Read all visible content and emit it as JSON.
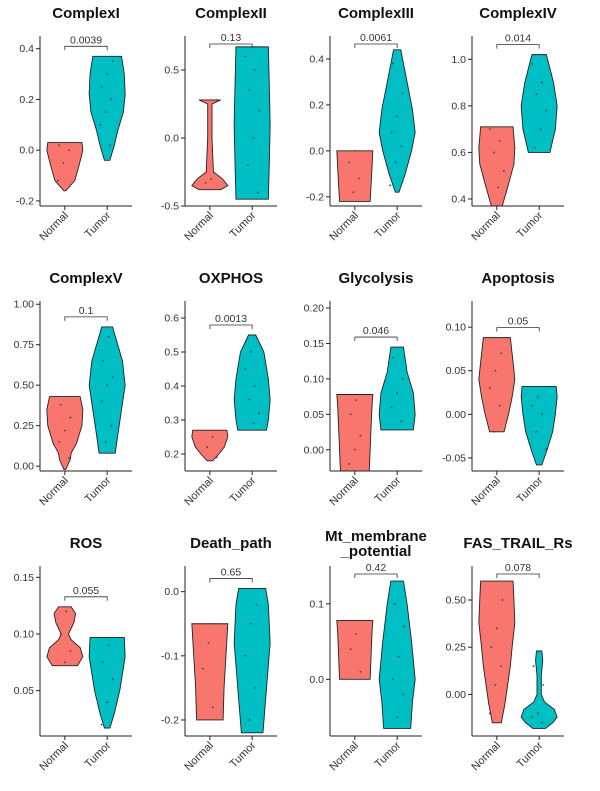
{
  "colors": {
    "normal": "#F8766D",
    "tumor": "#00BFC4"
  },
  "chart_data": [
    {
      "type": "violin",
      "title": "ComplexI",
      "categories": [
        "Normal",
        "Tumor"
      ],
      "ylim": [
        -0.22,
        0.45
      ],
      "yticks": [
        -0.2,
        0.0,
        0.2,
        0.4
      ],
      "ytick_labels": [
        "-0.2",
        "0.0",
        "0.2",
        "0.4"
      ],
      "pvalue": "0.0039",
      "groups": [
        {
          "name": "Normal",
          "profile": [
            [
              -0.16,
              0.05
            ],
            [
              -0.12,
              0.55
            ],
            [
              -0.07,
              0.75
            ],
            [
              -0.03,
              0.9
            ],
            [
              0.0,
              1.0
            ],
            [
              0.03,
              0.95
            ]
          ],
          "points": [
            -0.12,
            -0.05,
            0.0,
            0.02
          ]
        },
        {
          "name": "Tumor",
          "profile": [
            [
              -0.04,
              0.15
            ],
            [
              0.02,
              0.4
            ],
            [
              0.08,
              0.6
            ],
            [
              0.15,
              0.9
            ],
            [
              0.22,
              1.0
            ],
            [
              0.3,
              0.95
            ],
            [
              0.37,
              0.8
            ]
          ],
          "points": [
            0.02,
            0.1,
            0.15,
            0.2,
            0.25,
            0.3,
            0.35
          ]
        }
      ]
    },
    {
      "type": "violin",
      "title": "ComplexII",
      "categories": [
        "Normal",
        "Tumor"
      ],
      "ylim": [
        -0.5,
        0.75
      ],
      "yticks": [
        -0.5,
        0.0,
        0.5
      ],
      "ytick_labels": [
        "-0.5",
        "0.0",
        "0.5"
      ],
      "pvalue": "0.13",
      "groups": [
        {
          "name": "Normal",
          "profile": [
            [
              -0.38,
              0.6
            ],
            [
              -0.35,
              1.0
            ],
            [
              -0.3,
              0.7
            ],
            [
              -0.25,
              0.2
            ],
            [
              0.0,
              0.12
            ],
            [
              0.25,
              0.12
            ],
            [
              0.28,
              0.6
            ]
          ],
          "points": [
            -0.33,
            -0.3,
            0.28
          ]
        },
        {
          "name": "Tumor",
          "profile": [
            [
              -0.45,
              0.9
            ],
            [
              -0.2,
              0.95
            ],
            [
              0.1,
              1.0
            ],
            [
              0.4,
              0.95
            ],
            [
              0.67,
              0.9
            ]
          ],
          "points": [
            -0.4,
            -0.2,
            0.0,
            0.2,
            0.35,
            0.5,
            0.6
          ]
        }
      ]
    },
    {
      "type": "violin",
      "title": "ComplexIII",
      "categories": [
        "Normal",
        "Tumor"
      ],
      "ylim": [
        -0.24,
        0.5
      ],
      "yticks": [
        -0.2,
        0.0,
        0.2,
        0.4
      ],
      "ytick_labels": [
        "-0.2",
        "0.0",
        "0.2",
        "0.4"
      ],
      "pvalue": "0.0061",
      "groups": [
        {
          "name": "Normal",
          "profile": [
            [
              -0.22,
              0.85
            ],
            [
              -0.15,
              0.9
            ],
            [
              -0.08,
              0.95
            ],
            [
              0.0,
              1.0
            ]
          ],
          "points": [
            -0.18,
            -0.12,
            -0.05,
            0.0
          ]
        },
        {
          "name": "Tumor",
          "profile": [
            [
              -0.18,
              0.1
            ],
            [
              -0.1,
              0.45
            ],
            [
              0.0,
              0.8
            ],
            [
              0.08,
              1.0
            ],
            [
              0.18,
              0.85
            ],
            [
              0.3,
              0.55
            ],
            [
              0.44,
              0.2
            ]
          ],
          "points": [
            -0.15,
            -0.05,
            0.02,
            0.08,
            0.15,
            0.25,
            0.38
          ]
        }
      ]
    },
    {
      "type": "violin",
      "title": "ComplexIV",
      "categories": [
        "Normal",
        "Tumor"
      ],
      "ylim": [
        0.37,
        1.1
      ],
      "yticks": [
        0.4,
        0.6,
        0.8,
        1.0
      ],
      "ytick_labels": [
        "0.4",
        "0.6",
        "0.8",
        "1.0"
      ],
      "pvalue": "0.014",
      "groups": [
        {
          "name": "Normal",
          "profile": [
            [
              0.37,
              0.3
            ],
            [
              0.45,
              0.6
            ],
            [
              0.55,
              0.95
            ],
            [
              0.62,
              1.0
            ],
            [
              0.71,
              0.9
            ]
          ],
          "points": [
            0.45,
            0.52,
            0.6,
            0.65,
            0.7
          ]
        },
        {
          "name": "Tumor",
          "profile": [
            [
              0.6,
              0.6
            ],
            [
              0.7,
              0.9
            ],
            [
              0.8,
              1.0
            ],
            [
              0.9,
              0.8
            ],
            [
              1.02,
              0.4
            ]
          ],
          "points": [
            0.62,
            0.7,
            0.78,
            0.85,
            0.9,
            0.98
          ]
        }
      ]
    },
    {
      "type": "violin",
      "title": "ComplexV",
      "categories": [
        "Normal",
        "Tumor"
      ],
      "ylim": [
        -0.03,
        1.02
      ],
      "yticks": [
        0.0,
        0.25,
        0.5,
        0.75,
        1.0
      ],
      "ytick_labels": [
        "0.00",
        "0.25",
        "0.50",
        "0.75",
        "1.00"
      ],
      "pvalue": "0.1",
      "groups": [
        {
          "name": "Normal",
          "profile": [
            [
              -0.02,
              0.05
            ],
            [
              0.04,
              0.3
            ],
            [
              0.08,
              0.35
            ],
            [
              0.14,
              0.65
            ],
            [
              0.25,
              0.95
            ],
            [
              0.35,
              1.0
            ],
            [
              0.43,
              0.85
            ]
          ],
          "points": [
            0.05,
            0.15,
            0.22,
            0.3,
            0.38
          ]
        },
        {
          "name": "Tumor",
          "profile": [
            [
              0.08,
              0.45
            ],
            [
              0.2,
              0.6
            ],
            [
              0.35,
              0.8
            ],
            [
              0.5,
              1.0
            ],
            [
              0.65,
              0.85
            ],
            [
              0.86,
              0.3
            ]
          ],
          "points": [
            0.15,
            0.25,
            0.4,
            0.5,
            0.55,
            0.65,
            0.8
          ]
        }
      ]
    },
    {
      "type": "violin",
      "title": "OXPHOS",
      "categories": [
        "Normal",
        "Tumor"
      ],
      "ylim": [
        0.15,
        0.65
      ],
      "yticks": [
        0.2,
        0.3,
        0.4,
        0.5,
        0.6
      ],
      "ytick_labels": [
        "0.2",
        "0.3",
        "0.4",
        "0.5",
        "0.6"
      ],
      "pvalue": "0.0013",
      "groups": [
        {
          "name": "Normal",
          "profile": [
            [
              0.18,
              0.15
            ],
            [
              0.2,
              0.5
            ],
            [
              0.22,
              0.8
            ],
            [
              0.25,
              1.0
            ],
            [
              0.27,
              0.95
            ]
          ],
          "points": [
            0.19,
            0.22,
            0.25
          ]
        },
        {
          "name": "Tumor",
          "profile": [
            [
              0.27,
              0.8
            ],
            [
              0.3,
              0.9
            ],
            [
              0.36,
              1.0
            ],
            [
              0.42,
              0.9
            ],
            [
              0.5,
              0.65
            ],
            [
              0.55,
              0.2
            ]
          ],
          "points": [
            0.29,
            0.32,
            0.36,
            0.4,
            0.45,
            0.5
          ]
        }
      ]
    },
    {
      "type": "violin",
      "title": "Glycolysis",
      "categories": [
        "Normal",
        "Tumor"
      ],
      "ylim": [
        -0.03,
        0.21
      ],
      "yticks": [
        0.0,
        0.05,
        0.1,
        0.15,
        0.2
      ],
      "ytick_labels": [
        "0.00",
        "0.05",
        "0.10",
        "0.15",
        "0.20"
      ],
      "pvalue": "0.046",
      "groups": [
        {
          "name": "Normal",
          "profile": [
            [
              -0.03,
              0.8
            ],
            [
              0.0,
              0.85
            ],
            [
              0.03,
              0.9
            ],
            [
              0.06,
              0.95
            ],
            [
              0.078,
              1.0
            ]
          ],
          "points": [
            -0.02,
            0.0,
            0.02,
            0.05,
            0.07
          ]
        },
        {
          "name": "Tumor",
          "profile": [
            [
              0.028,
              0.9
            ],
            [
              0.05,
              1.0
            ],
            [
              0.08,
              0.9
            ],
            [
              0.11,
              0.55
            ],
            [
              0.145,
              0.35
            ]
          ],
          "points": [
            0.04,
            0.06,
            0.08,
            0.1,
            0.13
          ]
        }
      ]
    },
    {
      "type": "violin",
      "title": "Apoptosis",
      "categories": [
        "Normal",
        "Tumor"
      ],
      "ylim": [
        -0.065,
        0.13
      ],
      "yticks": [
        -0.05,
        0.0,
        0.05,
        0.1
      ],
      "ytick_labels": [
        "-0.05",
        "0.00",
        "0.05",
        "0.10"
      ],
      "pvalue": "0.05",
      "groups": [
        {
          "name": "Normal",
          "profile": [
            [
              -0.02,
              0.4
            ],
            [
              0.0,
              0.65
            ],
            [
              0.02,
              0.85
            ],
            [
              0.04,
              1.0
            ],
            [
              0.06,
              0.9
            ],
            [
              0.088,
              0.75
            ]
          ],
          "points": [
            -0.02,
            0.01,
            0.03,
            0.05,
            0.07
          ]
        },
        {
          "name": "Tumor",
          "profile": [
            [
              -0.058,
              0.15
            ],
            [
              -0.04,
              0.45
            ],
            [
              -0.02,
              0.75
            ],
            [
              0.0,
              0.9
            ],
            [
              0.02,
              1.0
            ],
            [
              0.032,
              0.95
            ]
          ],
          "points": [
            -0.04,
            -0.02,
            0.0,
            0.01,
            0.02
          ]
        }
      ]
    },
    {
      "type": "violin",
      "title": "ROS",
      "categories": [
        "Normal",
        "Tumor"
      ],
      "ylim": [
        0.01,
        0.16
      ],
      "yticks": [
        0.05,
        0.1,
        0.15
      ],
      "ytick_labels": [
        "0.05",
        "0.10",
        "0.15"
      ],
      "pvalue": "0.055",
      "groups": [
        {
          "name": "Normal",
          "profile": [
            [
              0.072,
              0.7
            ],
            [
              0.08,
              1.0
            ],
            [
              0.088,
              0.85
            ],
            [
              0.095,
              0.35
            ],
            [
              0.1,
              0.2
            ],
            [
              0.11,
              0.5
            ],
            [
              0.118,
              0.6
            ],
            [
              0.124,
              0.35
            ]
          ],
          "points": [
            0.075,
            0.085,
            0.1,
            0.12
          ]
        },
        {
          "name": "Tumor",
          "profile": [
            [
              0.017,
              0.15
            ],
            [
              0.03,
              0.4
            ],
            [
              0.05,
              0.7
            ],
            [
              0.07,
              0.9
            ],
            [
              0.08,
              1.0
            ],
            [
              0.097,
              0.95
            ]
          ],
          "points": [
            0.02,
            0.04,
            0.06,
            0.075,
            0.09
          ]
        }
      ]
    },
    {
      "type": "violin",
      "title": "Death_path",
      "categories": [
        "Normal",
        "Tumor"
      ],
      "ylim": [
        -0.225,
        0.04
      ],
      "yticks": [
        -0.2,
        -0.1,
        0.0
      ],
      "ytick_labels": [
        "-0.2",
        "-0.1",
        "0.0"
      ],
      "pvalue": "0.65",
      "groups": [
        {
          "name": "Normal",
          "profile": [
            [
              -0.2,
              0.7
            ],
            [
              -0.15,
              0.75
            ],
            [
              -0.1,
              0.85
            ],
            [
              -0.05,
              0.95
            ]
          ],
          "points": [
            -0.18,
            -0.12,
            -0.08,
            -0.05
          ]
        },
        {
          "name": "Tumor",
          "profile": [
            [
              -0.22,
              0.6
            ],
            [
              -0.15,
              0.8
            ],
            [
              -0.08,
              1.0
            ],
            [
              -0.02,
              0.9
            ],
            [
              0.005,
              0.75
            ]
          ],
          "points": [
            -0.2,
            -0.15,
            -0.1,
            -0.05,
            -0.02
          ]
        }
      ]
    },
    {
      "type": "violin",
      "title": "Mt_membrane\n_potential",
      "title_lines": [
        "Mt_membrane",
        "_potential"
      ],
      "categories": [
        "Normal",
        "Tumor"
      ],
      "ylim": [
        -0.075,
        0.15
      ],
      "yticks": [
        0.0,
        0.1
      ],
      "ytick_labels": [
        "0.0",
        "0.1"
      ],
      "pvalue": "0.42",
      "groups": [
        {
          "name": "Normal",
          "profile": [
            [
              0.0,
              0.85
            ],
            [
              0.03,
              0.9
            ],
            [
              0.06,
              0.95
            ],
            [
              0.078,
              1.0
            ]
          ],
          "points": [
            0.01,
            0.04,
            0.06
          ]
        },
        {
          "name": "Tumor",
          "profile": [
            [
              -0.065,
              0.75
            ],
            [
              -0.03,
              0.85
            ],
            [
              0.0,
              1.0
            ],
            [
              0.05,
              0.8
            ],
            [
              0.1,
              0.55
            ],
            [
              0.13,
              0.35
            ]
          ],
          "points": [
            -0.05,
            -0.02,
            0.0,
            0.03,
            0.07,
            0.1
          ]
        }
      ]
    },
    {
      "type": "violin",
      "title": "FAS_TRAIL_Rs",
      "categories": [
        "Normal",
        "Tumor"
      ],
      "ylim": [
        -0.22,
        0.68
      ],
      "yticks": [
        0.0,
        0.25,
        0.5
      ],
      "ytick_labels": [
        "0.00",
        "0.25",
        "0.50"
      ],
      "pvalue": "0.078",
      "groups": [
        {
          "name": "Normal",
          "profile": [
            [
              -0.15,
              0.25
            ],
            [
              -0.05,
              0.45
            ],
            [
              0.05,
              0.6
            ],
            [
              0.15,
              0.75
            ],
            [
              0.25,
              0.85
            ],
            [
              0.38,
              1.0
            ],
            [
              0.5,
              0.95
            ],
            [
              0.6,
              0.9
            ]
          ],
          "points": [
            -0.1,
            0.05,
            0.15,
            0.25,
            0.35,
            0.5
          ]
        },
        {
          "name": "Tumor",
          "profile": [
            [
              -0.18,
              0.35
            ],
            [
              -0.15,
              0.75
            ],
            [
              -0.12,
              1.0
            ],
            [
              -0.08,
              0.85
            ],
            [
              -0.04,
              0.3
            ],
            [
              0.0,
              0.12
            ],
            [
              0.1,
              0.12
            ],
            [
              0.18,
              0.2
            ],
            [
              0.23,
              0.15
            ]
          ],
          "points": [
            -0.15,
            -0.12,
            -0.1,
            0.05,
            0.15
          ]
        }
      ]
    }
  ]
}
